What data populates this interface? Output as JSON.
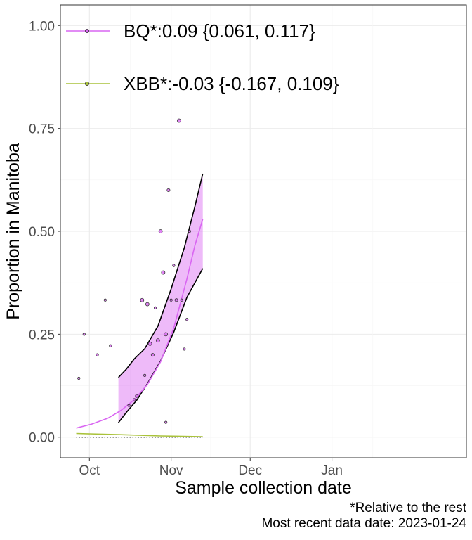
{
  "chart_data": {
    "type": "scatter",
    "xlabel": "Sample collection date",
    "ylabel": "Proportion in Manitoba",
    "x_domain": [
      "2023-09-20",
      "2024-02-21"
    ],
    "ylim": [
      -0.05,
      1.05
    ],
    "x_ticks": [
      {
        "date": "2023-10-01",
        "label": "Oct"
      },
      {
        "date": "2023-11-01",
        "label": "Nov"
      },
      {
        "date": "2023-12-01",
        "label": "Dec"
      },
      {
        "date": "2024-01-01",
        "label": "Jan"
      }
    ],
    "y_ticks": [
      {
        "value": 0.0,
        "label": "0.00"
      },
      {
        "value": 0.25,
        "label": "0.25"
      },
      {
        "value": 0.5,
        "label": "0.50"
      },
      {
        "value": 0.75,
        "label": "0.75"
      },
      {
        "value": 1.0,
        "label": "1.00"
      }
    ],
    "grid": true,
    "legend_position": "top-left",
    "series": [
      {
        "name": "BQ*",
        "legend_label": "BQ*:0.09 {0.061, 0.117}",
        "color": "#d966f2",
        "fit": [
          {
            "date": "2023-09-26",
            "y": 0.022
          },
          {
            "date": "2023-10-02",
            "y": 0.032
          },
          {
            "date": "2023-10-08",
            "y": 0.046
          },
          {
            "date": "2023-10-13",
            "y": 0.065
          },
          {
            "date": "2023-10-18",
            "y": 0.091
          },
          {
            "date": "2023-10-23",
            "y": 0.128
          },
          {
            "date": "2023-10-28",
            "y": 0.183
          },
          {
            "date": "2023-11-02",
            "y": 0.265
          },
          {
            "date": "2023-11-07",
            "y": 0.385
          },
          {
            "date": "2023-11-10",
            "y": 0.465
          },
          {
            "date": "2023-11-13",
            "y": 0.53
          }
        ],
        "ci_upper": [
          {
            "date": "2023-10-12",
            "y": 0.145
          },
          {
            "date": "2023-10-15",
            "y": 0.165
          },
          {
            "date": "2023-10-18",
            "y": 0.19
          },
          {
            "date": "2023-10-22",
            "y": 0.215
          },
          {
            "date": "2023-10-27",
            "y": 0.27
          },
          {
            "date": "2023-11-01",
            "y": 0.36
          },
          {
            "date": "2023-11-06",
            "y": 0.46
          },
          {
            "date": "2023-11-10",
            "y": 0.56
          },
          {
            "date": "2023-11-13",
            "y": 0.64
          }
        ],
        "ci_lower": [
          {
            "date": "2023-10-12",
            "y": 0.035
          },
          {
            "date": "2023-10-15",
            "y": 0.06
          },
          {
            "date": "2023-10-19",
            "y": 0.09
          },
          {
            "date": "2023-10-23",
            "y": 0.13
          },
          {
            "date": "2023-10-28",
            "y": 0.185
          },
          {
            "date": "2023-11-02",
            "y": 0.255
          },
          {
            "date": "2023-11-07",
            "y": 0.34
          },
          {
            "date": "2023-11-13",
            "y": 0.41
          }
        ],
        "points": [
          {
            "date": "2023-09-27",
            "y": 0.143,
            "size": 1
          },
          {
            "date": "2023-09-29",
            "y": 0.25,
            "size": 1
          },
          {
            "date": "2023-10-04",
            "y": 0.2,
            "size": 1
          },
          {
            "date": "2023-10-07",
            "y": 0.333,
            "size": 1
          },
          {
            "date": "2023-10-09",
            "y": 0.222,
            "size": 1
          },
          {
            "date": "2023-10-16",
            "y": 0.077,
            "size": 1
          },
          {
            "date": "2023-10-18",
            "y": 0.091,
            "size": 1
          },
          {
            "date": "2023-10-19",
            "y": 0.1,
            "size": 1.5
          },
          {
            "date": "2023-10-21",
            "y": 0.333,
            "size": 2
          },
          {
            "date": "2023-10-22",
            "y": 0.15,
            "size": 1
          },
          {
            "date": "2023-10-23",
            "y": 0.323,
            "size": 2
          },
          {
            "date": "2023-10-24",
            "y": 0.227,
            "size": 2
          },
          {
            "date": "2023-10-25",
            "y": 0.2,
            "size": 1.5
          },
          {
            "date": "2023-10-26",
            "y": 0.314,
            "size": 1
          },
          {
            "date": "2023-10-27",
            "y": 0.235,
            "size": 2
          },
          {
            "date": "2023-10-28",
            "y": 0.5,
            "size": 2
          },
          {
            "date": "2023-10-29",
            "y": 0.4,
            "size": 2
          },
          {
            "date": "2023-10-30",
            "y": 0.036,
            "size": 1
          },
          {
            "date": "2023-10-30",
            "y": 0.25,
            "size": 2
          },
          {
            "date": "2023-10-31",
            "y": 0.6,
            "size": 1.5
          },
          {
            "date": "2023-11-01",
            "y": 0.333,
            "size": 1
          },
          {
            "date": "2023-11-02",
            "y": 0.417,
            "size": 1
          },
          {
            "date": "2023-11-03",
            "y": 0.333,
            "size": 1.5
          },
          {
            "date": "2023-11-04",
            "y": 0.769,
            "size": 2
          },
          {
            "date": "2023-11-05",
            "y": 0.333,
            "size": 1
          },
          {
            "date": "2023-11-06",
            "y": 0.214,
            "size": 1
          },
          {
            "date": "2023-11-07",
            "y": 0.286,
            "size": 1
          },
          {
            "date": "2023-11-08",
            "y": 0.5,
            "size": 1
          }
        ]
      },
      {
        "name": "XBB*",
        "legend_label": "XBB*:-0.03 {-0.167, 0.109}",
        "color": "#a9c23a",
        "fit": [
          {
            "date": "2023-09-26",
            "y": 0.009
          },
          {
            "date": "2023-10-13",
            "y": 0.006
          },
          {
            "date": "2023-10-28",
            "y": 0.003
          },
          {
            "date": "2023-11-13",
            "y": 0.001
          }
        ],
        "points": []
      }
    ],
    "reference_line": {
      "style": "dotted",
      "color": "#000000",
      "points": [
        {
          "date": "2023-09-26",
          "y": 0.0
        },
        {
          "date": "2023-11-13",
          "y": 0.0
        }
      ]
    }
  },
  "caption": {
    "line1": "*Relative to the rest",
    "line2": "Most recent data date: 2023-01-24"
  }
}
